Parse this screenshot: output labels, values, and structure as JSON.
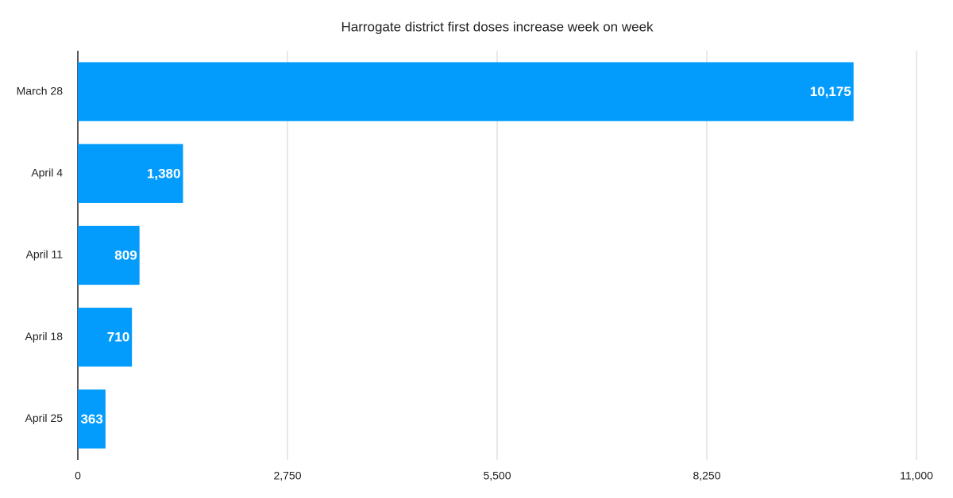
{
  "chart_data": {
    "type": "hbar",
    "title": "Harrogate district first doses increase week on week",
    "categories": [
      "March 28",
      "April 4",
      "April 11",
      "April 18",
      "April 25"
    ],
    "values": [
      10175,
      1380,
      809,
      710,
      363
    ],
    "value_labels": [
      "10,175",
      "1,380",
      "809",
      "710",
      "363"
    ],
    "color": "#039cfd",
    "xlim": [
      0,
      11000
    ],
    "xticks": [
      0,
      {
        "value": 2750,
        "label": "2,750"
      },
      {
        "value": 5500,
        "label": "5,500"
      },
      {
        "value": 8250,
        "label": "8,250"
      },
      {
        "value": 11000,
        "label": "11,000"
      }
    ],
    "grid": true
  }
}
